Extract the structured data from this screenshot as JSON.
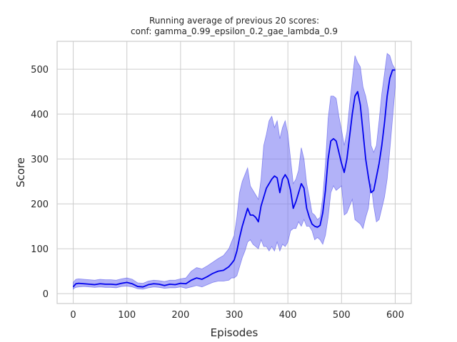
{
  "chart_data": {
    "type": "line",
    "title": "Running average of previous 20 scores:",
    "subtitle": "conf: gamma_0.99_epsilon_0.2_gae_lambda_0.9",
    "xlabel": "Episodes",
    "ylabel": "Score",
    "xlim": [
      -30,
      630
    ],
    "ylim": [
      -22,
      562
    ],
    "xticks": [
      0,
      100,
      200,
      300,
      400,
      500,
      600
    ],
    "yticks": [
      0,
      100,
      200,
      300,
      400,
      500
    ],
    "grid": true,
    "legend": "none",
    "colors": {
      "line": "#0000ee",
      "band": "#7373f2",
      "band_edge": "#5050e8",
      "grid": "#cccccc",
      "frame": "#cccccc"
    },
    "series": [
      {
        "x": [
          0,
          2,
          5,
          10,
          20,
          30,
          40,
          50,
          60,
          70,
          80,
          90,
          100,
          110,
          120,
          130,
          140,
          150,
          160,
          170,
          180,
          190,
          200,
          210,
          220,
          230,
          240,
          250,
          260,
          270,
          280,
          290,
          295,
          300,
          305,
          310,
          315,
          320,
          325,
          330,
          335,
          340,
          345,
          350,
          355,
          360,
          365,
          370,
          375,
          380,
          385,
          390,
          395,
          400,
          405,
          410,
          415,
          420,
          425,
          430,
          435,
          440,
          445,
          450,
          455,
          460,
          465,
          470,
          475,
          480,
          485,
          490,
          495,
          500,
          505,
          510,
          515,
          520,
          525,
          530,
          535,
          540,
          545,
          550,
          555,
          560,
          565,
          570,
          575,
          580,
          585,
          590,
          595,
          600
        ],
        "y": [
          15,
          18,
          22,
          23,
          22,
          21,
          20,
          22,
          21,
          21,
          20,
          23,
          25,
          22,
          16,
          15,
          20,
          22,
          21,
          18,
          21,
          20,
          23,
          22,
          30,
          35,
          32,
          38,
          45,
          50,
          52,
          60,
          67,
          75,
          95,
          125,
          150,
          170,
          190,
          175,
          175,
          170,
          160,
          195,
          215,
          235,
          245,
          255,
          262,
          258,
          225,
          255,
          265,
          255,
          230,
          190,
          205,
          225,
          245,
          235,
          190,
          170,
          155,
          150,
          148,
          152,
          180,
          230,
          300,
          340,
          345,
          340,
          315,
          290,
          270,
          300,
          350,
          400,
          440,
          450,
          420,
          360,
          300,
          260,
          225,
          230,
          260,
          290,
          330,
          380,
          440,
          480,
          498,
          498
        ],
        "lower": [
          10,
          12,
          14,
          15,
          16,
          15,
          14,
          15,
          14,
          14,
          13,
          16,
          17,
          15,
          11,
          10,
          13,
          15,
          14,
          12,
          13,
          13,
          15,
          12,
          15,
          18,
          15,
          20,
          25,
          28,
          28,
          30,
          35,
          35,
          40,
          60,
          80,
          95,
          115,
          120,
          110,
          105,
          100,
          120,
          105,
          105,
          95,
          105,
          95,
          115,
          95,
          110,
          105,
          115,
          140,
          145,
          145,
          160,
          150,
          165,
          150,
          150,
          140,
          120,
          125,
          120,
          110,
          130,
          170,
          225,
          240,
          230,
          235,
          240,
          175,
          180,
          195,
          210,
          165,
          160,
          155,
          145,
          170,
          190,
          245,
          195,
          160,
          165,
          190,
          215,
          255,
          320,
          390,
          460
        ],
        "upper": [
          25,
          28,
          32,
          33,
          32,
          31,
          30,
          32,
          31,
          31,
          30,
          33,
          35,
          32,
          24,
          23,
          28,
          30,
          29,
          27,
          30,
          30,
          33,
          35,
          50,
          58,
          55,
          62,
          70,
          78,
          85,
          100,
          115,
          130,
          170,
          225,
          250,
          265,
          280,
          240,
          230,
          220,
          210,
          255,
          330,
          355,
          385,
          395,
          370,
          385,
          345,
          370,
          385,
          355,
          300,
          245,
          255,
          275,
          325,
          300,
          245,
          215,
          180,
          175,
          165,
          170,
          215,
          290,
          390,
          440,
          440,
          435,
          395,
          365,
          330,
          360,
          420,
          475,
          530,
          515,
          505,
          460,
          440,
          410,
          330,
          315,
          330,
          385,
          445,
          490,
          535,
          530,
          510,
          500
        ]
      }
    ]
  }
}
